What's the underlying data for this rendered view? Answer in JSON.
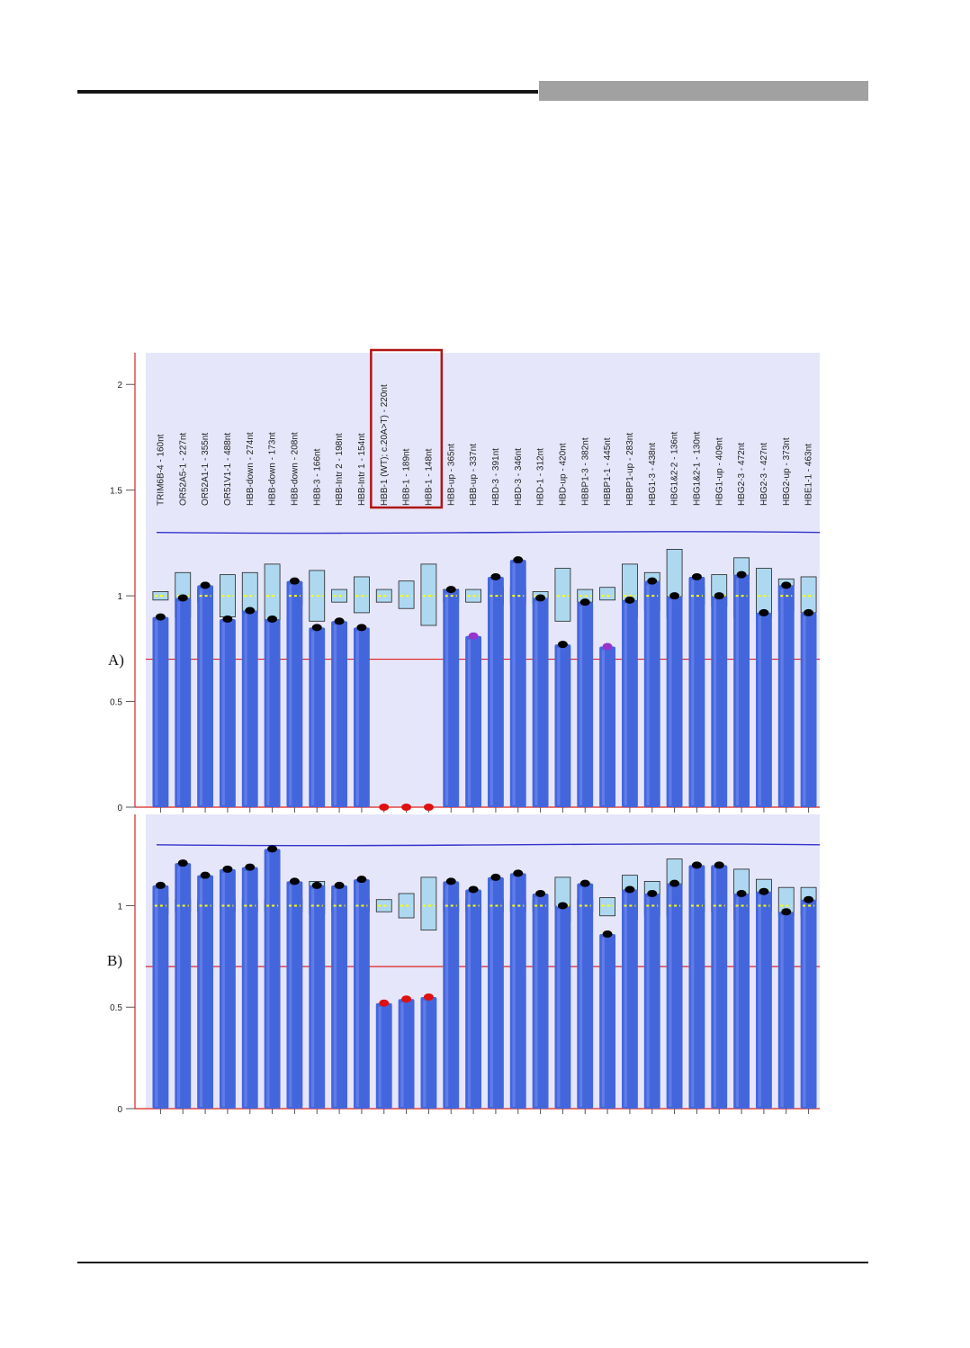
{
  "colors": {
    "bar": "#4466dd",
    "plot_bg": "#e6e6fa",
    "upper_line": "#3333cc",
    "lower_line": "#dd2222",
    "box_fill": "#add8f0",
    "box_stroke": "#222222",
    "dot_normal": "#000000",
    "dot_warn": "#9933cc",
    "dot_alert": "#dd1111",
    "highlight_box": "#b01515",
    "median_dash": "#ffff00"
  },
  "chart_data": [
    {
      "type": "bar",
      "panel_label": "A)",
      "ylim": [
        0,
        2.15
      ],
      "yticks": [
        "0",
        "0.5",
        "1",
        "1.5",
        "2"
      ],
      "upper_threshold": 1.3,
      "lower_threshold": 0.7,
      "grid": false,
      "legend": "none",
      "categories": [
        "TRIM6B-4 - 160nt",
        "OR52A5-1 - 227nt",
        "OR52A1-1 - 355nt",
        "OR51V1-1 - 488nt",
        "HBB-down - 274nt",
        "HBB-down - 173nt",
        "HBB-down - 208nt",
        "HBB-3 - 166nt",
        "HBB-Intr 2 - 198nt",
        "HBB-Intr 1 - 154nt",
        "HBB-1 (WT); c.20A>T) - 220nt",
        "HBB-1 - 189nt",
        "HBB-1 - 148nt",
        "HBB-up - 365nt",
        "HBB-up - 337nt",
        "HBD-3 - 391nt",
        "HBD-3 - 346nt",
        "HBD-1 - 312nt",
        "HBD-up - 420nt",
        "HBBP1-3 - 382nt",
        "HBBP1-1 - 445nt",
        "HBBP1-up - 283nt",
        "HBG1-3 - 438nt",
        "HBG1&2-2 - 136nt",
        "HBG1&2-1 - 130nt",
        "HBG1-up - 409nt",
        "HBG2-3 - 472nt",
        "HBG2-3 - 427nt",
        "HBG2-up - 373nt",
        "HBE1-1 - 463nt"
      ],
      "values": [
        0.9,
        0.99,
        1.05,
        0.89,
        0.93,
        0.89,
        1.07,
        0.85,
        0.88,
        0.85,
        0,
        0,
        0,
        1.03,
        0.81,
        1.09,
        1.17,
        0.99,
        0.77,
        0.97,
        0.76,
        0.98,
        1.07,
        1.0,
        1.09,
        1.0,
        1.1,
        0.92,
        1.05,
        0.92
      ],
      "dot_status": [
        "normal",
        "normal",
        "normal",
        "normal",
        "normal",
        "normal",
        "normal",
        "normal",
        "normal",
        "normal",
        "alert",
        "alert",
        "alert",
        "normal",
        "warn",
        "normal",
        "normal",
        "normal",
        "normal",
        "normal",
        "warn",
        "normal",
        "normal",
        "normal",
        "normal",
        "normal",
        "normal",
        "normal",
        "normal",
        "normal"
      ],
      "reference_box": [
        [
          0.98,
          1.02
        ],
        [
          0.9,
          1.11
        ],
        [
          0.97,
          1.03
        ],
        [
          0.9,
          1.1
        ],
        [
          0.92,
          1.11
        ],
        [
          0.88,
          1.15
        ],
        [
          0.96,
          1.04
        ],
        [
          0.88,
          1.12
        ],
        [
          0.97,
          1.03
        ],
        [
          0.92,
          1.09
        ],
        [
          0.97,
          1.03
        ],
        [
          0.94,
          1.07
        ],
        [
          0.86,
          1.15
        ],
        [
          0.97,
          1.03
        ],
        [
          0.97,
          1.03
        ],
        [
          0.96,
          1.04
        ],
        [
          0.96,
          1.04
        ],
        [
          0.96,
          1.02
        ],
        [
          0.88,
          1.13
        ],
        [
          0.97,
          1.03
        ],
        [
          0.98,
          1.04
        ],
        [
          0.9,
          1.15
        ],
        [
          0.93,
          1.11
        ],
        [
          0.9,
          1.22
        ],
        [
          0.96,
          1.04
        ],
        [
          0.95,
          1.1
        ],
        [
          0.9,
          1.18
        ],
        [
          0.9,
          1.13
        ],
        [
          0.93,
          1.08
        ],
        [
          0.92,
          1.09
        ]
      ]
    },
    {
      "type": "bar",
      "panel_label": "B)",
      "ylim": [
        0,
        1.45
      ],
      "yticks": [
        "0",
        "0.5",
        "1"
      ],
      "upper_threshold": 1.3,
      "lower_threshold": 0.7,
      "grid": false,
      "legend": "none",
      "categories": [
        "TRIM6B-4 - 160nt",
        "OR52A5-1 - 227nt",
        "OR52A1-1 - 355nt",
        "OR51V1-1 - 488nt",
        "HBB-down - 274nt",
        "HBB-down - 173nt",
        "HBB-down - 208nt",
        "HBB-3 - 166nt",
        "HBB-Intr 2 - 198nt",
        "HBB-Intr 1 - 154nt",
        "HBB-1 (WT); c.20A>T) - 220nt",
        "HBB-1 - 189nt",
        "HBB-1 - 148nt",
        "HBB-up - 365nt",
        "HBB-up - 337nt",
        "HBD-3 - 391nt",
        "HBD-3 - 346nt",
        "HBD-1 - 312nt",
        "HBD-up - 420nt",
        "HBBP1-3 - 382nt",
        "HBBP1-1 - 445nt",
        "HBBP1-up - 283nt",
        "HBG1-3 - 438nt",
        "HBG1&2-2 - 136nt",
        "HBG1&2-1 - 130nt",
        "HBG1-up - 409nt",
        "HBG2-3 - 472nt",
        "HBG2-3 - 427nt",
        "HBG2-up - 373nt",
        "HBE1-1 - 463nt"
      ],
      "values": [
        1.1,
        1.21,
        1.15,
        1.18,
        1.19,
        1.28,
        1.12,
        1.1,
        1.1,
        1.13,
        0.52,
        0.54,
        0.55,
        1.12,
        1.08,
        1.14,
        1.16,
        1.06,
        1.0,
        1.11,
        0.86,
        1.08,
        1.06,
        1.11,
        1.2,
        1.2,
        1.06,
        1.07,
        0.97,
        1.03
      ],
      "dot_status": [
        "normal",
        "normal",
        "normal",
        "normal",
        "normal",
        "normal",
        "normal",
        "normal",
        "normal",
        "normal",
        "alert",
        "alert",
        "alert",
        "normal",
        "normal",
        "normal",
        "normal",
        "normal",
        "normal",
        "normal",
        "normal",
        "normal",
        "normal",
        "normal",
        "normal",
        "normal",
        "normal",
        "normal",
        "normal",
        "normal"
      ],
      "reference_box": [
        [
          0.96,
          1.04
        ],
        [
          0.97,
          1.03
        ],
        [
          0.97,
          1.03
        ],
        [
          0.97,
          1.03
        ],
        [
          0.97,
          1.03
        ],
        [
          0.97,
          1.03
        ],
        [
          0.97,
          1.03
        ],
        [
          0.96,
          1.12
        ],
        [
          0.97,
          1.03
        ],
        [
          0.97,
          1.03
        ],
        [
          0.97,
          1.03
        ],
        [
          0.94,
          1.06
        ],
        [
          0.88,
          1.14
        ],
        [
          0.97,
          1.03
        ],
        [
          0.97,
          1.03
        ],
        [
          0.97,
          1.03
        ],
        [
          0.97,
          1.03
        ],
        [
          0.97,
          1.03
        ],
        [
          0.92,
          1.14
        ],
        [
          0.97,
          1.03
        ],
        [
          0.95,
          1.04
        ],
        [
          0.93,
          1.15
        ],
        [
          0.95,
          1.12
        ],
        [
          0.95,
          1.23
        ],
        [
          0.97,
          1.03
        ],
        [
          0.97,
          1.19
        ],
        [
          0.93,
          1.18
        ],
        [
          0.97,
          1.13
        ],
        [
          0.95,
          1.09
        ],
        [
          0.95,
          1.09
        ]
      ]
    }
  ]
}
